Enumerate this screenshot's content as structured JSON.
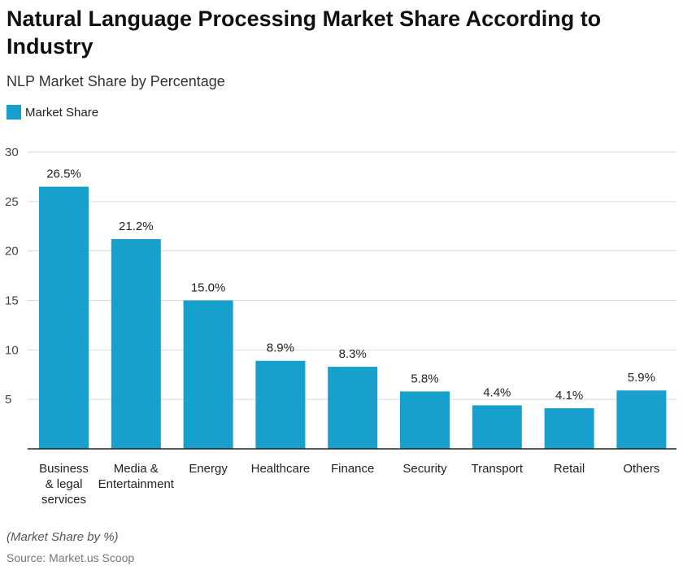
{
  "title": "Natural Language Processing Market Share According to Industry",
  "subtitle": "NLP Market Share by Percentage",
  "note": "(Market Share by %)",
  "source": "Source: Market.us Scoop",
  "colors": {
    "bar": "#18a0cc",
    "grid": "#d9d9d9",
    "axis": "#222222"
  },
  "chart_data": {
    "type": "bar",
    "title": "Natural Language Processing Market Share According to Industry",
    "subtitle": "NLP Market Share by Percentage",
    "categories": [
      "Business & legal services",
      "Media & Entertainment",
      "Energy",
      "Healthcare",
      "Finance",
      "Security",
      "Transport",
      "Retail",
      "Others"
    ],
    "category_lines": [
      [
        "Business",
        "& legal",
        "services"
      ],
      [
        "Media &",
        "Entertainment"
      ],
      [
        "Energy"
      ],
      [
        "Healthcare"
      ],
      [
        "Finance"
      ],
      [
        "Security"
      ],
      [
        "Transport"
      ],
      [
        "Retail"
      ],
      [
        "Others"
      ]
    ],
    "series": [
      {
        "name": "Market Share",
        "values": [
          26.5,
          21.2,
          15.0,
          8.9,
          8.3,
          5.8,
          4.4,
          4.1,
          5.9
        ]
      }
    ],
    "data_labels": [
      "26.5%",
      "21.2%",
      "15.0%",
      "8.9%",
      "8.3%",
      "5.8%",
      "4.4%",
      "4.1%",
      "5.9%"
    ],
    "ylim": [
      0,
      30
    ],
    "yticks": [
      5,
      10,
      15,
      20,
      25,
      30
    ],
    "grid": true,
    "legend": "top-left"
  }
}
